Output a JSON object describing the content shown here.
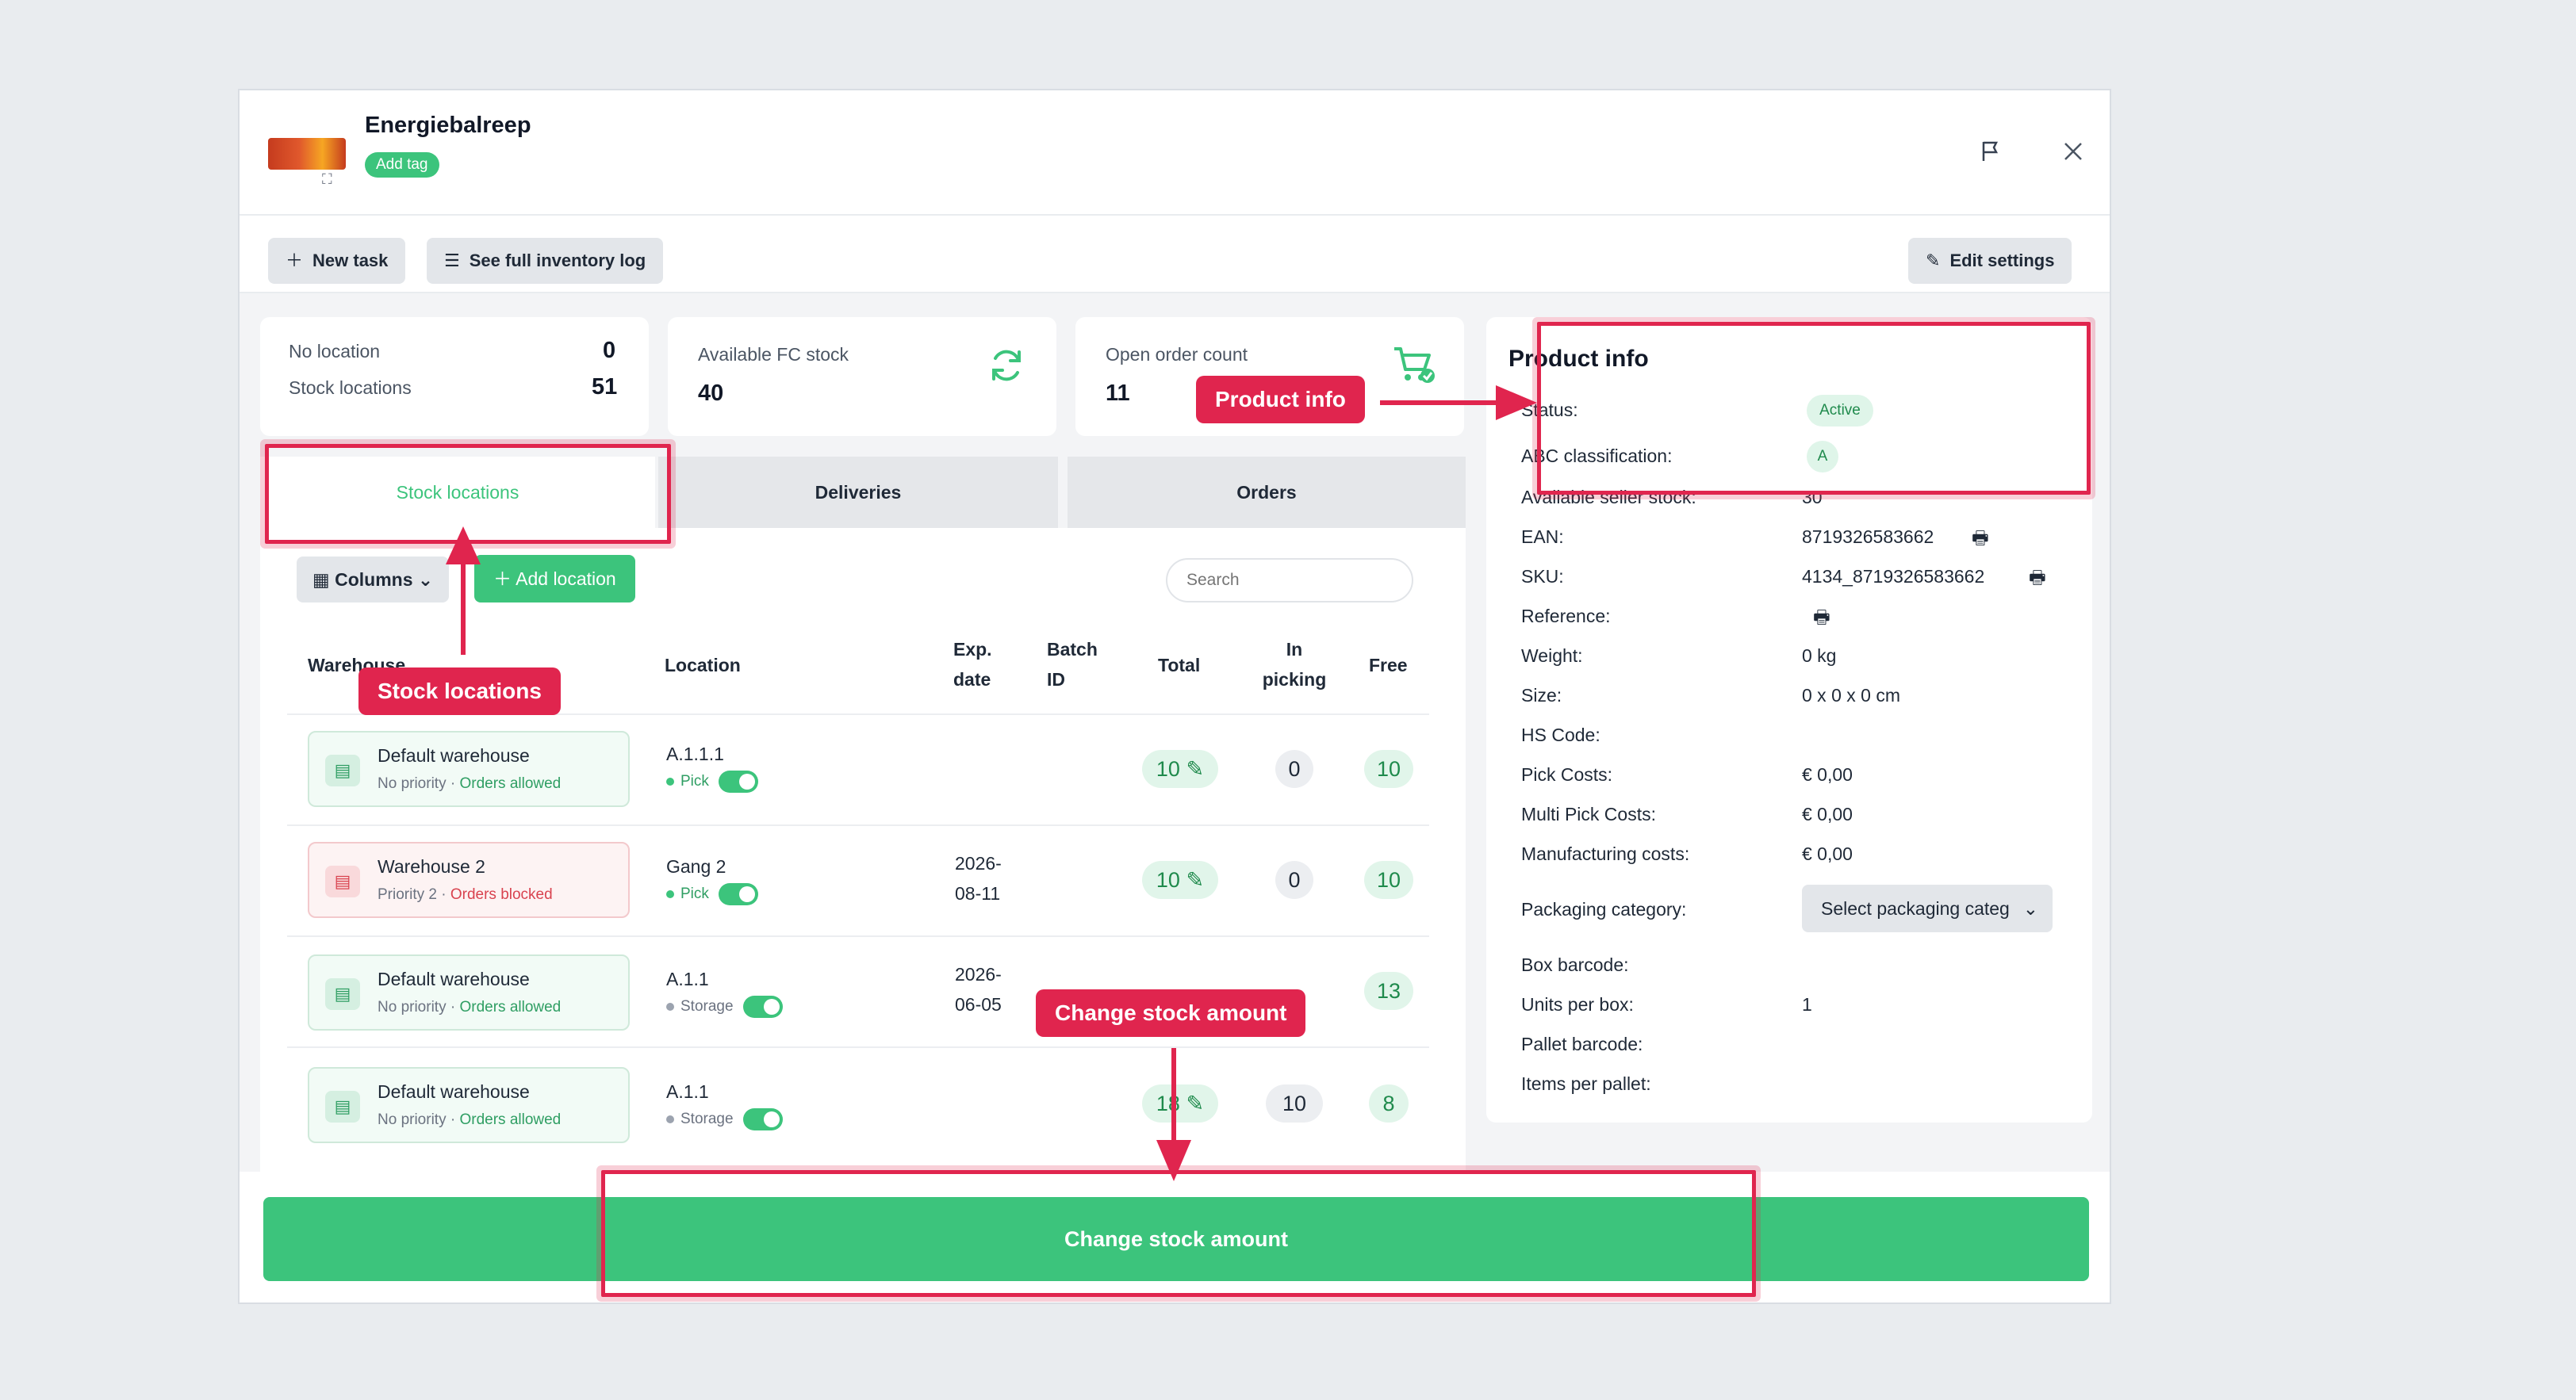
{
  "header": {
    "title": "Energiebalreep",
    "add_tag": "Add tag",
    "flag_icon": "flag-icon",
    "close_icon": "close-icon"
  },
  "toolbar": {
    "new_task": "New task",
    "inventory_log": "See full inventory log",
    "edit_settings": "Edit settings"
  },
  "summary": {
    "no_location_label": "No location",
    "no_location_value": "0",
    "stock_locations_label": "Stock locations",
    "stock_locations_value": "51",
    "available_fc_label": "Available FC stock",
    "available_fc_value": "40",
    "open_order_label": "Open order count",
    "open_order_value": "11"
  },
  "tabs": [
    "Stock locations",
    "Deliveries",
    "Orders"
  ],
  "table_controls": {
    "columns": "Columns",
    "add_location": "Add location",
    "search_placeholder": "Search"
  },
  "table": {
    "headers": {
      "warehouse": "Warehouse",
      "location": "Location",
      "exp_date": "Exp. date",
      "batch_id": "Batch ID",
      "total": "Total",
      "in_picking": "In picking",
      "free": "Free"
    },
    "rows": [
      {
        "warehouse": "Default warehouse",
        "priority": "No priority",
        "orders": "Orders allowed",
        "location": "A.1.1.1",
        "mode": "Pick",
        "exp_date": "",
        "batch": "",
        "total": "10",
        "in_picking": "0",
        "free": "10"
      },
      {
        "warehouse": "Warehouse 2",
        "priority": "Priority 2",
        "orders": "Orders blocked",
        "location": "Gang 2",
        "mode": "Pick",
        "exp_date": "2026-08-11",
        "batch": "",
        "total": "10",
        "in_picking": "0",
        "free": "10"
      },
      {
        "warehouse": "Default warehouse",
        "priority": "No priority",
        "orders": "Orders allowed",
        "location": "A.1.1",
        "mode": "Storage",
        "exp_date": "2026-06-05",
        "batch": "",
        "total": "",
        "in_picking": "",
        "free": "13"
      },
      {
        "warehouse": "Default warehouse",
        "priority": "No priority",
        "orders": "Orders allowed",
        "location": "A.1.1",
        "mode": "Storage",
        "exp_date": "",
        "batch": "",
        "total": "18",
        "in_picking": "10",
        "free": "8"
      }
    ]
  },
  "product_info": {
    "title": "Product info",
    "status_label": "Status:",
    "status_value": "Active",
    "abc_label": "ABC classification:",
    "abc_value": "A",
    "seller_stock_label": "Available seller stock:",
    "seller_stock_value": "30",
    "ean_label": "EAN:",
    "ean_value": "8719326583662",
    "sku_label": "SKU:",
    "sku_value": "4134_8719326583662",
    "reference_label": "Reference:",
    "weight_label": "Weight:",
    "weight_value": "0 kg",
    "size_label": "Size:",
    "size_value": "0 x 0 x 0 cm",
    "hs_label": "HS Code:",
    "pick_costs_label": "Pick Costs:",
    "pick_costs_value": "€ 0,00",
    "multi_pick_label": "Multi Pick Costs:",
    "multi_pick_value": "€ 0,00",
    "manufacturing_label": "Manufacturing costs:",
    "manufacturing_value": "€ 0,00",
    "packaging_label": "Packaging category:",
    "packaging_value": "Select packaging categ",
    "box_barcode_label": "Box barcode:",
    "units_per_box_label": "Units per box:",
    "units_per_box_value": "1",
    "pallet_barcode_label": "Pallet barcode:",
    "items_per_pallet_label": "Items per pallet:"
  },
  "footer": {
    "change_stock": "Change stock amount"
  },
  "annotations": {
    "stock_locations": "Stock locations",
    "product_info": "Product info",
    "change_stock": "Change stock amount"
  },
  "colors": {
    "accent": "#3cc47c",
    "callout": "#e0254e",
    "blocked": "#d9434f"
  }
}
